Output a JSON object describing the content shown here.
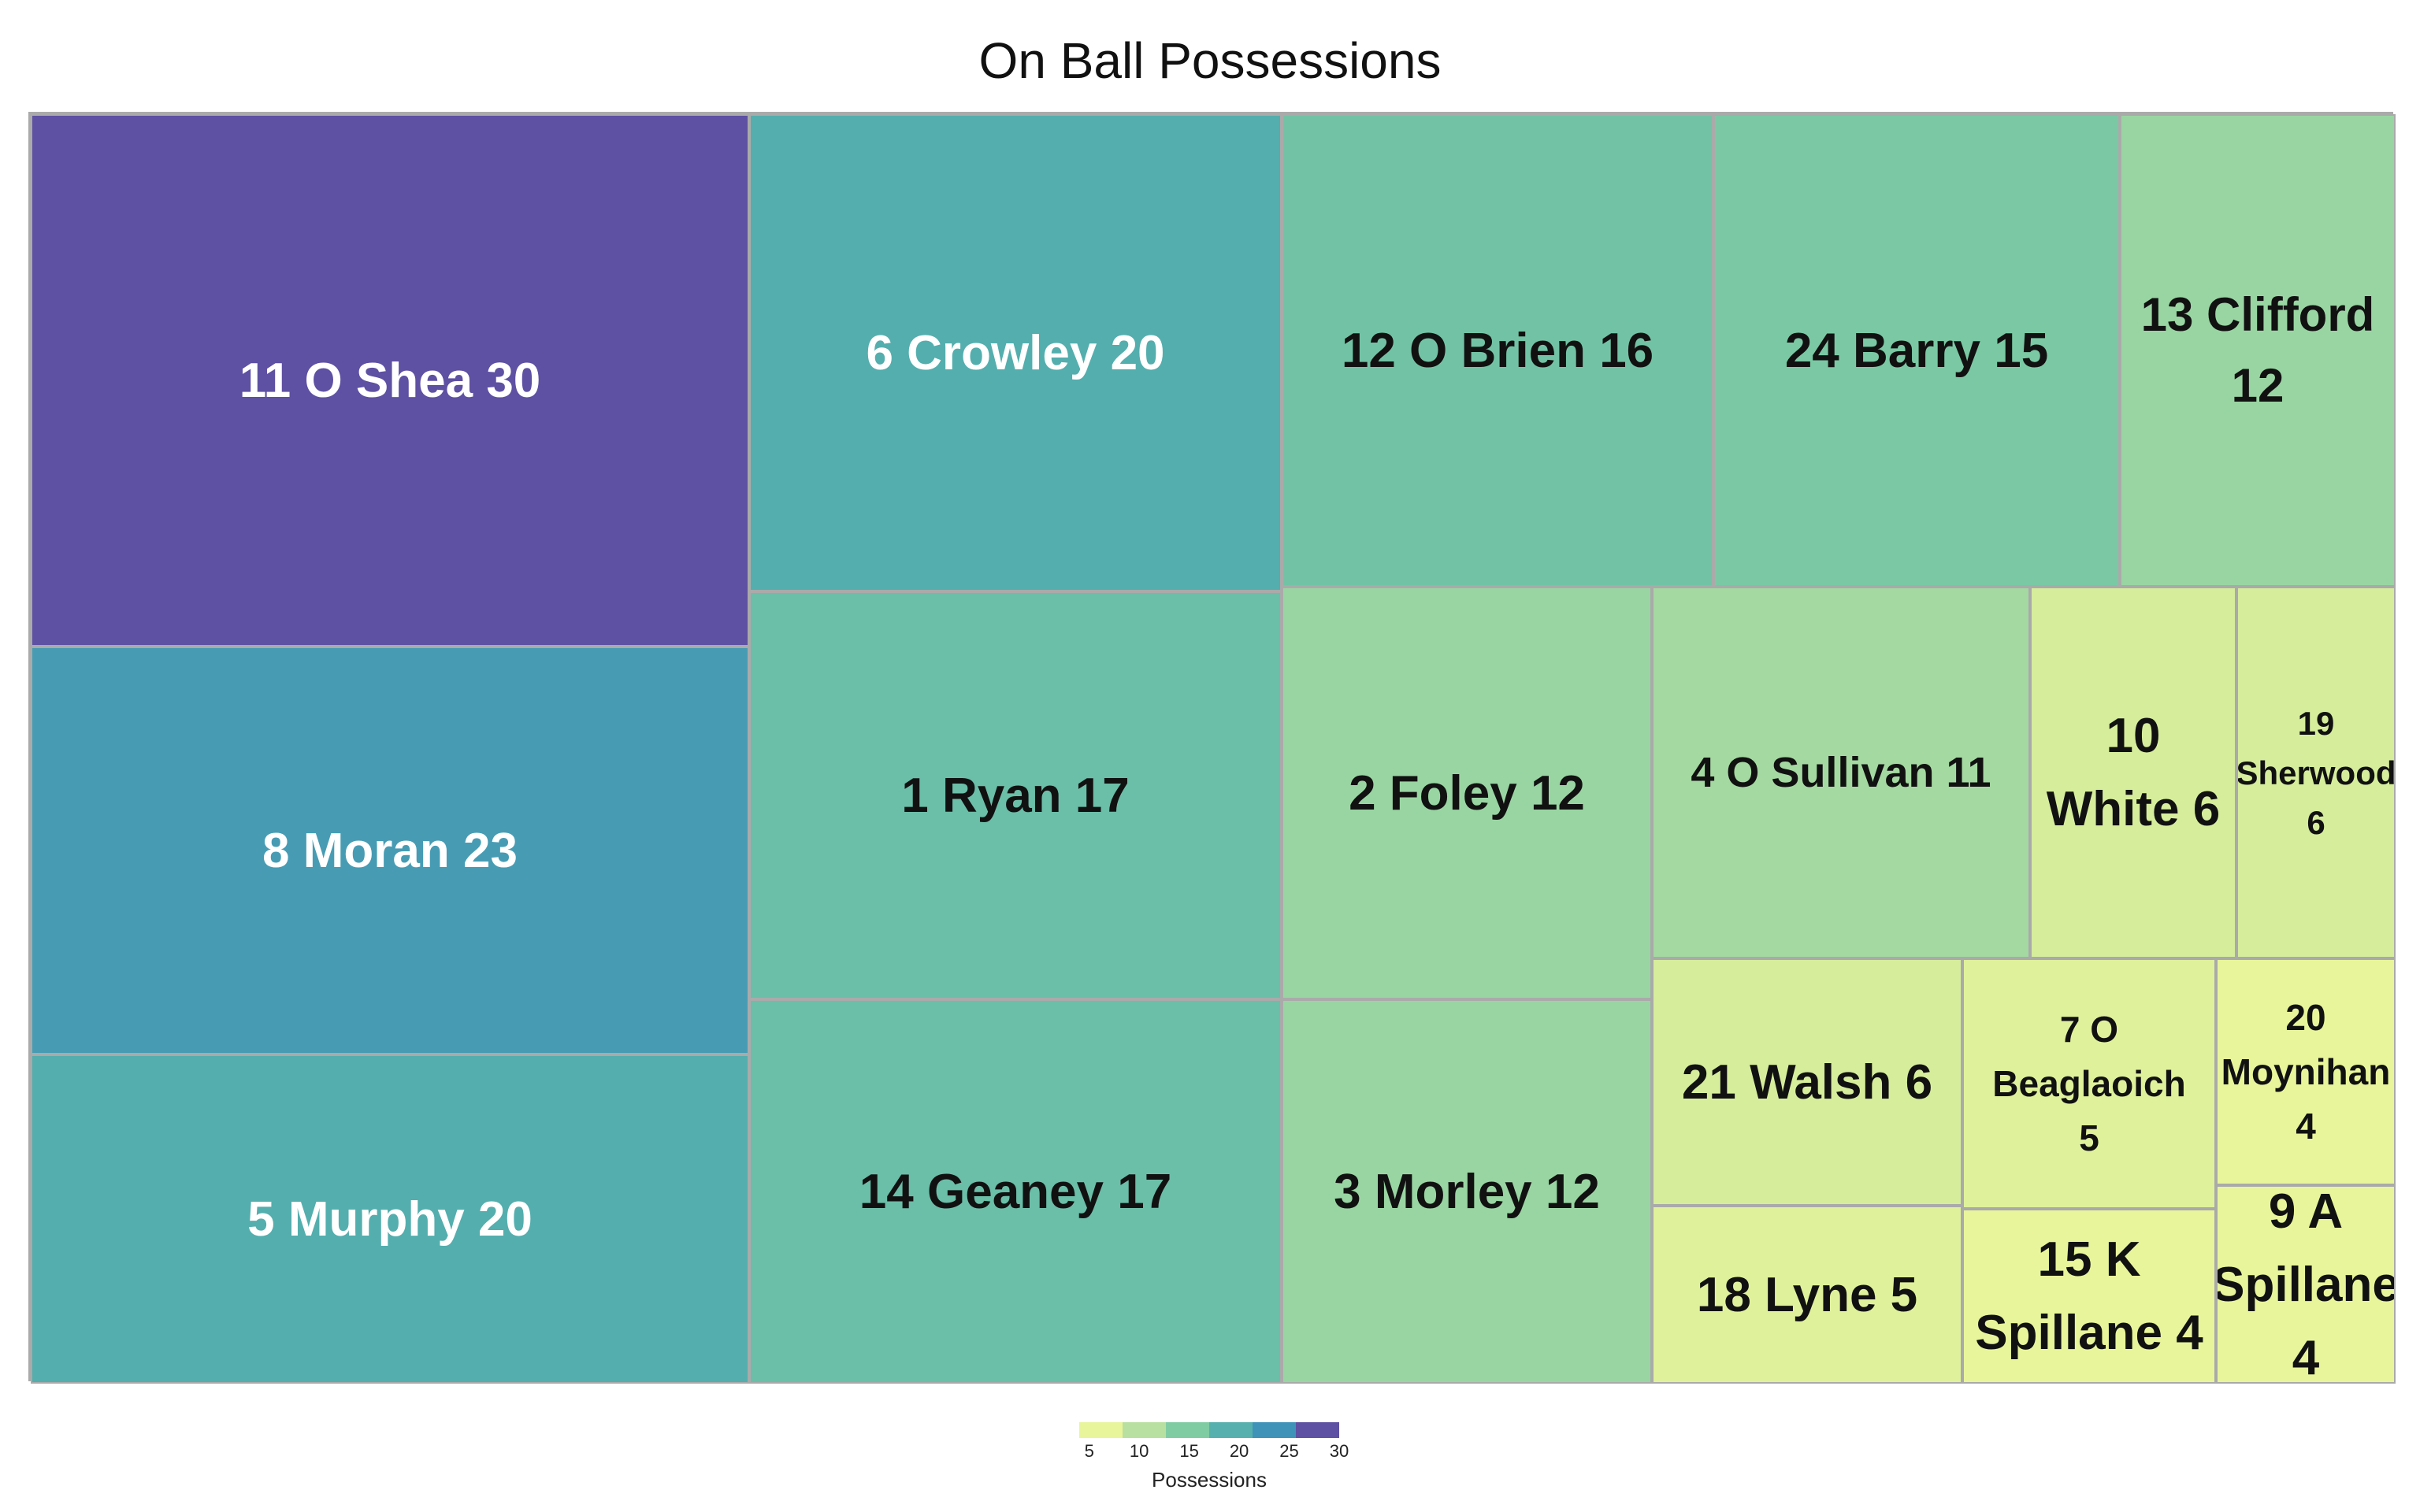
{
  "chart_data": {
    "type": "treemap",
    "title": "On Ball Possessions",
    "value_label": "Possessions",
    "tiles": [
      {
        "label": "11 O Shea  30",
        "value": 30
      },
      {
        "label": "8 Moran 23",
        "value": 23
      },
      {
        "label": "5 Murphy 20",
        "value": 20
      },
      {
        "label": "6 Crowley 20",
        "value": 20
      },
      {
        "label": "1 Ryan 17",
        "value": 17
      },
      {
        "label": "14 Geaney  17",
        "value": 17
      },
      {
        "label": "12 O Brien 16",
        "value": 16
      },
      {
        "label": "24 Barry 15",
        "value": 15
      },
      {
        "label": "13 Clifford\n12",
        "value": 12
      },
      {
        "label": "2 Foley 12",
        "value": 12
      },
      {
        "label": "3 Morley 12",
        "value": 12
      },
      {
        "label": "4 O Sullivan 11",
        "value": 11
      },
      {
        "label": "10\nWhite 6",
        "value": 6
      },
      {
        "label": "19\nSherwood\n6",
        "value": 6
      },
      {
        "label": "21 Walsh  6",
        "value": 6
      },
      {
        "label": "7 O\nBeaglaoich\n5",
        "value": 5
      },
      {
        "label": "20\nMoynihan\n4",
        "value": 4
      },
      {
        "label": "18 Lyne 5",
        "value": 5
      },
      {
        "label": "15 K\nSpillane 4",
        "value": 4
      },
      {
        "label": "9 A\nSpillane\n4",
        "value": 4
      }
    ],
    "legend": {
      "title": "Possessions",
      "ticks": [
        5,
        10,
        15,
        20,
        25,
        30
      ],
      "range": [
        4,
        30
      ],
      "colors": [
        "#e8f59a",
        "#b8e0a0",
        "#7fcca3",
        "#56b0ad",
        "#3f92b8",
        "#5e50a2"
      ]
    }
  }
}
